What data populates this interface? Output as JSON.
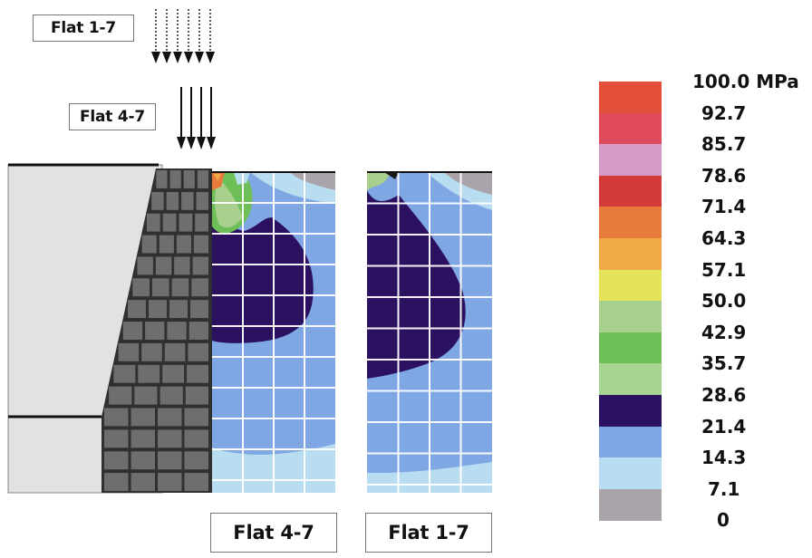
{
  "loads": {
    "label_a": "Flat 1-7",
    "label_b": "Flat 4-7"
  },
  "panels": {
    "left_label": "Flat 4-7",
    "right_label": "Flat 1-7"
  },
  "legend": {
    "unit": "MPa",
    "values": [
      "100.0",
      "92.7",
      "85.7",
      "78.6",
      "71.4",
      "64.3",
      "57.1",
      "50.0",
      "42.9",
      "35.7",
      "28.6",
      "21.4",
      "14.3",
      "7.1",
      "0"
    ],
    "colors": [
      "#e2503a",
      "#df4a5c",
      "#d49ac8",
      "#d33b3b",
      "#e87a3c",
      "#f0aa48",
      "#e4e45a",
      "#a8d08c",
      "#6ebf58",
      "#a7d491",
      "#2b1160",
      "#7ea7e4",
      "#b9ddf0",
      "#aaa4aa"
    ]
  }
}
